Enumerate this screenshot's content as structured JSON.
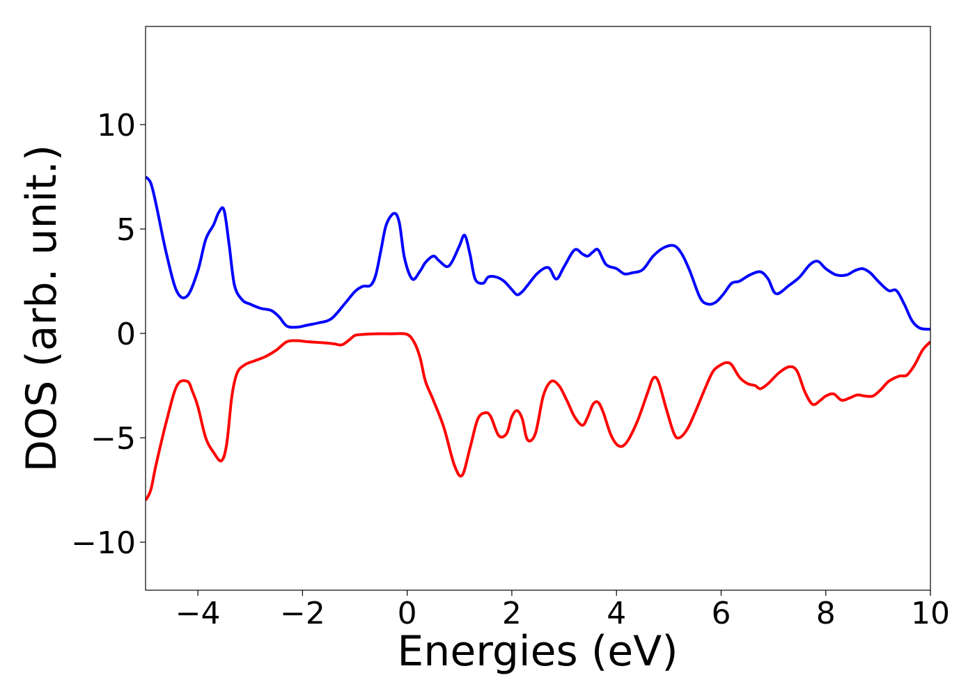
{
  "chart_data": {
    "type": "line",
    "title": "",
    "xlabel": "Energies (eV)",
    "ylabel": "DOS (arb. unit.)",
    "xlim": [
      -5,
      10
    ],
    "ylim": [
      -12.3,
      14.7
    ],
    "xticks": [
      -4,
      -2,
      0,
      2,
      4,
      6,
      8,
      10
    ],
    "xtick_labels": [
      "−4",
      "−2",
      "0",
      "2",
      "4",
      "6",
      "8",
      "10"
    ],
    "yticks": [
      -10,
      -5,
      0,
      5,
      10
    ],
    "ytick_labels": [
      "−10",
      "−5",
      "0",
      "5",
      "10"
    ],
    "grid": false,
    "legend": "none",
    "series": [
      {
        "color": "#0000ff",
        "x": [
          -5.0,
          -4.9,
          -4.8,
          -4.6,
          -4.4,
          -4.2,
          -4.0,
          -3.85,
          -3.7,
          -3.6,
          -3.5,
          -3.4,
          -3.3,
          -3.15,
          -3.0,
          -2.8,
          -2.6,
          -2.45,
          -2.3,
          -2.1,
          -1.9,
          -1.7,
          -1.45,
          -1.2,
          -1.0,
          -0.85,
          -0.7,
          -0.6,
          -0.5,
          -0.4,
          -0.25,
          -0.15,
          -0.05,
          0.1,
          0.25,
          0.35,
          0.5,
          0.6,
          0.75,
          0.85,
          1.0,
          1.1,
          1.2,
          1.3,
          1.45,
          1.55,
          1.7,
          1.85,
          2.0,
          2.1,
          2.2,
          2.3,
          2.5,
          2.7,
          2.85,
          3.0,
          3.2,
          3.35,
          3.45,
          3.55,
          3.65,
          3.8,
          4.0,
          4.15,
          4.3,
          4.5,
          4.7,
          4.9,
          5.1,
          5.25,
          5.4,
          5.6,
          5.75,
          5.9,
          6.05,
          6.2,
          6.35,
          6.55,
          6.75,
          6.9,
          7.05,
          7.3,
          7.5,
          7.7,
          7.85,
          8.0,
          8.2,
          8.4,
          8.55,
          8.7,
          8.85,
          9.0,
          9.2,
          9.35,
          9.5,
          9.65,
          9.8,
          10.0
        ],
        "y": [
          7.5,
          7.2,
          6.2,
          3.8,
          2.0,
          1.8,
          3.0,
          4.5,
          5.2,
          5.8,
          5.9,
          4.2,
          2.3,
          1.6,
          1.4,
          1.2,
          1.1,
          0.8,
          0.35,
          0.3,
          0.4,
          0.5,
          0.7,
          1.4,
          2.0,
          2.25,
          2.3,
          2.8,
          4.0,
          5.2,
          5.75,
          5.3,
          3.6,
          2.6,
          3.0,
          3.4,
          3.7,
          3.5,
          3.2,
          3.4,
          4.2,
          4.7,
          3.8,
          2.6,
          2.4,
          2.7,
          2.7,
          2.5,
          2.1,
          1.85,
          2.0,
          2.3,
          2.9,
          3.15,
          2.6,
          3.2,
          4.0,
          3.8,
          3.7,
          3.9,
          4.0,
          3.3,
          3.1,
          2.85,
          2.9,
          3.05,
          3.7,
          4.1,
          4.2,
          3.8,
          3.0,
          1.7,
          1.4,
          1.5,
          1.9,
          2.4,
          2.5,
          2.8,
          2.95,
          2.6,
          1.9,
          2.3,
          2.7,
          3.3,
          3.45,
          3.1,
          2.8,
          2.8,
          3.0,
          3.1,
          2.9,
          2.5,
          2.05,
          2.05,
          1.4,
          0.6,
          0.25,
          0.2
        ]
      },
      {
        "color": "#ff0000",
        "x": [
          -5.0,
          -4.9,
          -4.8,
          -4.6,
          -4.4,
          -4.2,
          -4.1,
          -4.0,
          -3.85,
          -3.7,
          -3.55,
          -3.45,
          -3.35,
          -3.25,
          -3.1,
          -2.9,
          -2.7,
          -2.5,
          -2.3,
          -2.1,
          -1.9,
          -1.6,
          -1.4,
          -1.25,
          -1.1,
          -1.0,
          -0.85,
          -0.6,
          -0.3,
          0.0,
          0.15,
          0.25,
          0.35,
          0.5,
          0.7,
          0.9,
          1.05,
          1.2,
          1.35,
          1.5,
          1.6,
          1.75,
          1.9,
          2.0,
          2.1,
          2.2,
          2.3,
          2.45,
          2.6,
          2.75,
          2.9,
          3.05,
          3.2,
          3.35,
          3.45,
          3.55,
          3.65,
          3.75,
          3.9,
          4.05,
          4.2,
          4.4,
          4.6,
          4.7,
          4.8,
          4.95,
          5.1,
          5.2,
          5.35,
          5.5,
          5.7,
          5.85,
          6.0,
          6.1,
          6.2,
          6.35,
          6.5,
          6.65,
          6.75,
          6.9,
          7.1,
          7.3,
          7.45,
          7.6,
          7.75,
          7.9,
          8.0,
          8.15,
          8.3,
          8.45,
          8.6,
          8.75,
          8.9,
          9.05,
          9.2,
          9.4,
          9.55,
          9.7,
          9.85,
          10.0
        ],
        "y": [
          -8.0,
          -7.5,
          -6.3,
          -4.2,
          -2.5,
          -2.3,
          -2.8,
          -3.5,
          -5.0,
          -5.7,
          -6.1,
          -5.3,
          -3.0,
          -1.9,
          -1.5,
          -1.3,
          -1.1,
          -0.8,
          -0.4,
          -0.35,
          -0.4,
          -0.45,
          -0.5,
          -0.55,
          -0.3,
          -0.1,
          -0.05,
          -0.02,
          -0.02,
          -0.05,
          -0.5,
          -1.2,
          -2.3,
          -3.2,
          -4.5,
          -6.3,
          -6.8,
          -5.5,
          -4.1,
          -3.8,
          -4.0,
          -4.9,
          -4.8,
          -4.0,
          -3.7,
          -4.1,
          -5.1,
          -4.8,
          -3.0,
          -2.3,
          -2.5,
          -3.2,
          -4.0,
          -4.4,
          -4.0,
          -3.4,
          -3.3,
          -3.8,
          -4.9,
          -5.4,
          -5.2,
          -4.2,
          -2.8,
          -2.15,
          -2.3,
          -3.6,
          -4.8,
          -5.0,
          -4.6,
          -3.8,
          -2.6,
          -1.8,
          -1.5,
          -1.4,
          -1.5,
          -2.1,
          -2.4,
          -2.5,
          -2.65,
          -2.4,
          -1.9,
          -1.6,
          -1.8,
          -2.8,
          -3.4,
          -3.2,
          -3.0,
          -2.9,
          -3.2,
          -3.1,
          -2.95,
          -3.0,
          -3.0,
          -2.7,
          -2.3,
          -2.05,
          -2.0,
          -1.5,
          -0.8,
          -0.4
        ]
      }
    ]
  }
}
